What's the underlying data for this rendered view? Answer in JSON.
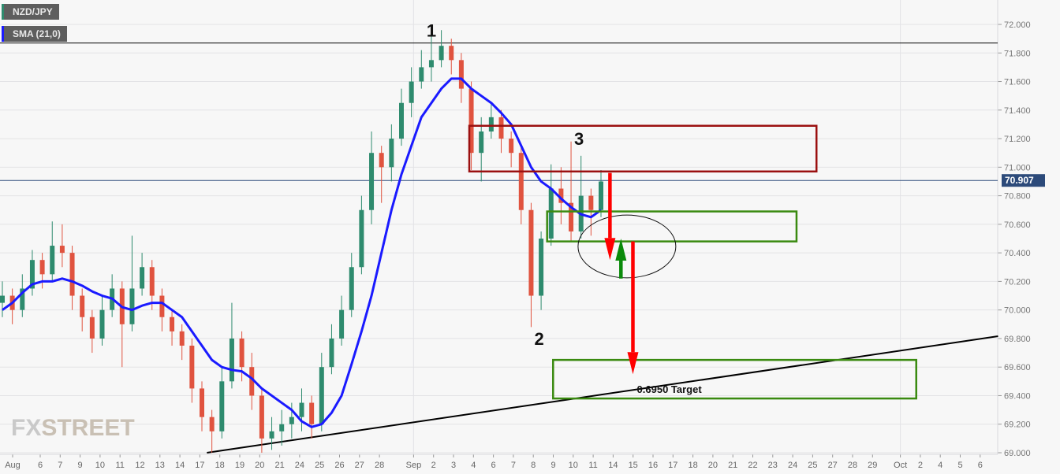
{
  "legend": {
    "symbol": "NZD/JPY",
    "indicator": "SMA (21,0)",
    "symbol_color": "#2e8b6e",
    "indicator_color": "#1a1aff"
  },
  "watermark": {
    "prefix": "FX",
    "suffix": "STREET"
  },
  "chart_data": {
    "type": "candlestick",
    "title": "",
    "ylim": [
      69.0,
      72.0
    ],
    "y_ticks": [
      "72.000",
      "71.800",
      "71.600",
      "71.400",
      "71.200",
      "71.000",
      "70.800",
      "70.600",
      "70.400",
      "70.200",
      "70.000",
      "69.800",
      "69.600",
      "69.400",
      "69.200",
      "69.000"
    ],
    "x_ticks": [
      "Aug",
      "6",
      "7",
      "9",
      "10",
      "11",
      "12",
      "13",
      "14",
      "17",
      "18",
      "19",
      "20",
      "21",
      "24",
      "25",
      "26",
      "27",
      "28",
      "Sep",
      "2",
      "3",
      "4",
      "6",
      "7",
      "8",
      "9",
      "10",
      "11",
      "14",
      "15",
      "16",
      "17",
      "18",
      "20",
      "21",
      "22",
      "23",
      "24",
      "25",
      "27",
      "28",
      "29",
      "Oct",
      "2",
      "4",
      "5",
      "6"
    ],
    "current_price": "70.907",
    "colors": {
      "up": "#2e8b6e",
      "down": "#e0533f",
      "sma": "#1a1aff",
      "price_line": "#2c4a7a",
      "price_badge": "#2c4a7a"
    },
    "candles": [
      [
        70.05,
        70.2,
        69.95,
        70.1
      ],
      [
        70.1,
        70.15,
        69.9,
        70.0
      ],
      [
        70.0,
        70.25,
        69.95,
        70.15
      ],
      [
        70.15,
        70.42,
        70.1,
        70.35
      ],
      [
        70.35,
        70.4,
        70.15,
        70.25
      ],
      [
        70.25,
        70.62,
        70.2,
        70.45
      ],
      [
        70.45,
        70.6,
        70.3,
        70.4
      ],
      [
        70.4,
        70.45,
        70.0,
        70.1
      ],
      [
        70.1,
        70.15,
        69.85,
        69.95
      ],
      [
        69.95,
        70.0,
        69.7,
        69.8
      ],
      [
        69.8,
        70.1,
        69.75,
        70.0
      ],
      [
        70.0,
        70.25,
        69.95,
        70.15
      ],
      [
        70.15,
        70.2,
        69.6,
        69.9
      ],
      [
        69.9,
        70.52,
        69.85,
        70.15
      ],
      [
        70.15,
        70.4,
        70.1,
        70.3
      ],
      [
        70.3,
        70.35,
        70.0,
        70.1
      ],
      [
        70.1,
        70.15,
        69.85,
        69.95
      ],
      [
        69.95,
        70.0,
        69.75,
        69.85
      ],
      [
        69.85,
        69.9,
        69.65,
        69.75
      ],
      [
        69.75,
        69.8,
        69.35,
        69.45
      ],
      [
        69.45,
        69.5,
        69.15,
        69.25
      ],
      [
        69.25,
        69.3,
        69.0,
        69.15
      ],
      [
        69.15,
        69.6,
        69.1,
        69.5
      ],
      [
        69.5,
        70.05,
        69.45,
        69.8
      ],
      [
        69.8,
        69.85,
        69.5,
        69.6
      ],
      [
        69.6,
        69.7,
        69.3,
        69.4
      ],
      [
        69.4,
        69.45,
        69.0,
        69.1
      ],
      [
        69.1,
        69.25,
        69.02,
        69.15
      ],
      [
        69.15,
        69.3,
        69.05,
        69.2
      ],
      [
        69.2,
        69.35,
        69.1,
        69.25
      ],
      [
        69.25,
        69.45,
        69.15,
        69.35
      ],
      [
        69.35,
        69.4,
        69.1,
        69.2
      ],
      [
        69.2,
        69.7,
        69.15,
        69.6
      ],
      [
        69.6,
        69.9,
        69.55,
        69.8
      ],
      [
        69.8,
        70.1,
        69.75,
        70.0
      ],
      [
        70.0,
        70.4,
        69.95,
        70.3
      ],
      [
        70.3,
        70.8,
        70.25,
        70.7
      ],
      [
        70.7,
        71.25,
        70.6,
        71.1
      ],
      [
        71.1,
        71.15,
        70.75,
        71.0
      ],
      [
        71.0,
        71.3,
        70.9,
        71.2
      ],
      [
        71.2,
        71.55,
        71.15,
        71.45
      ],
      [
        71.45,
        71.7,
        71.35,
        71.6
      ],
      [
        71.6,
        71.82,
        71.55,
        71.7
      ],
      [
        71.7,
        71.93,
        71.6,
        71.75
      ],
      [
        71.75,
        71.96,
        71.7,
        71.85
      ],
      [
        71.85,
        71.9,
        71.65,
        71.75
      ],
      [
        71.75,
        71.8,
        71.45,
        71.55
      ],
      [
        71.55,
        71.6,
        70.98,
        71.1
      ],
      [
        71.1,
        71.35,
        70.9,
        71.25
      ],
      [
        71.25,
        71.45,
        71.2,
        71.35
      ],
      [
        71.35,
        71.4,
        71.1,
        71.2
      ],
      [
        71.2,
        71.25,
        71.0,
        71.1
      ],
      [
        71.1,
        71.15,
        70.6,
        70.7
      ],
      [
        70.7,
        70.75,
        69.88,
        70.1
      ],
      [
        70.1,
        70.55,
        70.0,
        70.5
      ],
      [
        70.5,
        71.02,
        70.45,
        70.85
      ],
      [
        70.85,
        71.0,
        70.6,
        70.75
      ],
      [
        70.75,
        71.18,
        70.48,
        70.55
      ],
      [
        70.55,
        71.08,
        70.5,
        70.8
      ],
      [
        70.8,
        70.85,
        70.52,
        70.7
      ],
      [
        70.7,
        70.98,
        70.65,
        70.9
      ]
    ],
    "sma": [
      70.0,
      70.05,
      70.12,
      70.18,
      70.2,
      70.2,
      70.22,
      70.2,
      70.17,
      70.13,
      70.1,
      70.08,
      70.02,
      70.0,
      70.03,
      70.05,
      70.05,
      70.0,
      69.95,
      69.85,
      69.75,
      69.65,
      69.6,
      69.58,
      69.57,
      69.52,
      69.45,
      69.4,
      69.35,
      69.3,
      69.22,
      69.18,
      69.2,
      69.28,
      69.4,
      69.62,
      69.85,
      70.1,
      70.4,
      70.7,
      70.95,
      71.15,
      71.35,
      71.45,
      71.55,
      71.62,
      71.62,
      71.55,
      71.5,
      71.45,
      71.38,
      71.3,
      71.15,
      71.0,
      70.9,
      70.85,
      70.78,
      70.72,
      70.67,
      70.65,
      70.7
    ],
    "horizontal_lines": [
      {
        "price": 71.87,
        "color": "#000000"
      }
    ],
    "annotations": {
      "peak_labels": [
        {
          "text": "1",
          "index": 43,
          "price": 71.96
        },
        {
          "text": "2",
          "index": 53.8,
          "price": 69.8
        },
        {
          "text": "3",
          "index": 57.8,
          "price": 71.2
        }
      ],
      "zones": [
        {
          "color": "#9b1010",
          "from_index": 46.8,
          "to_index": 81.6,
          "top": 71.29,
          "bottom": 70.97
        },
        {
          "color": "#3a8a10",
          "from_index": 54.6,
          "to_index": 79.6,
          "top": 70.69,
          "bottom": 70.48
        },
        {
          "color": "#3a8a10",
          "from_index": 55.2,
          "to_index": 91.6,
          "top": 69.65,
          "bottom": 69.38
        }
      ],
      "trendline": {
        "from": [
          20.5,
          69.0
        ],
        "to": [
          99.8,
          69.816
        ],
        "color": "#000000"
      },
      "ellipse": {
        "index": 62.6,
        "price": 70.445,
        "index_radius": 4.9,
        "price_radius": 0.22
      },
      "arrows": [
        {
          "color": "#ff0000",
          "index": 60.9,
          "from": 70.96,
          "to": 70.35
        },
        {
          "color": "#0a8a0a",
          "index": 62.0,
          "from": 70.22,
          "to": 70.5
        },
        {
          "color": "#ff0000",
          "index": 63.2,
          "from": 70.48,
          "to": 69.55
        }
      ],
      "target_label": {
        "text": "0.6950 Target",
        "index": 63.6,
        "price": 69.44
      }
    }
  }
}
